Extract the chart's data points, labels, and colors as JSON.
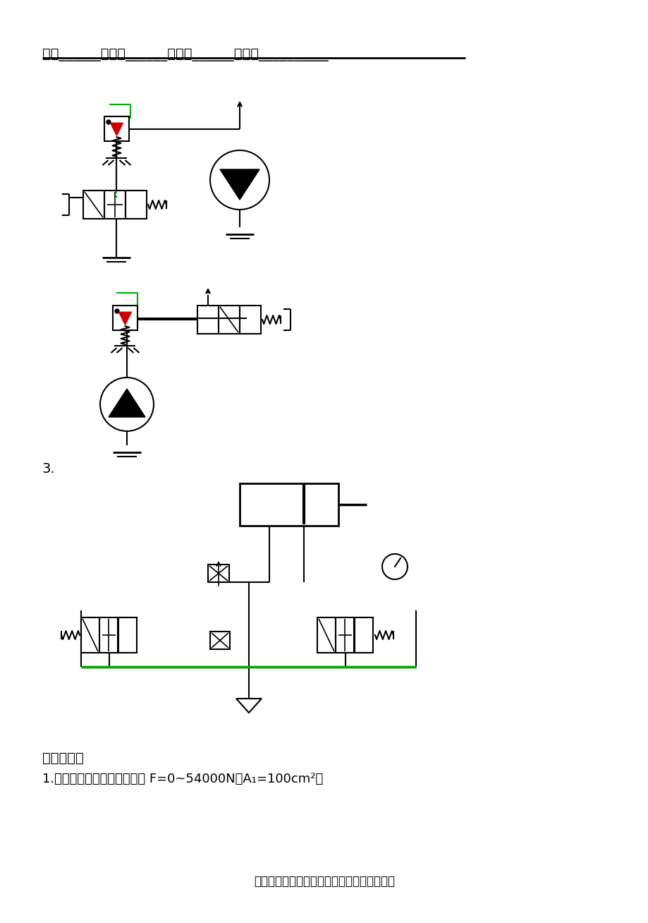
{
  "bg_color": "#ffffff",
  "title_line_text": "年级______；层次______；专业______；姓名__________",
  "section6_text": "六．计算题",
  "problem1_text": "1.进口节流调速回路中，已知 F=0~54000N，A₁=100cm²，",
  "footer_text": "复习资料，自我完善，仅供参考，考完上交！",
  "line_color": "#000000",
  "green_color": "#00aa00",
  "red_color": "#cc0000"
}
